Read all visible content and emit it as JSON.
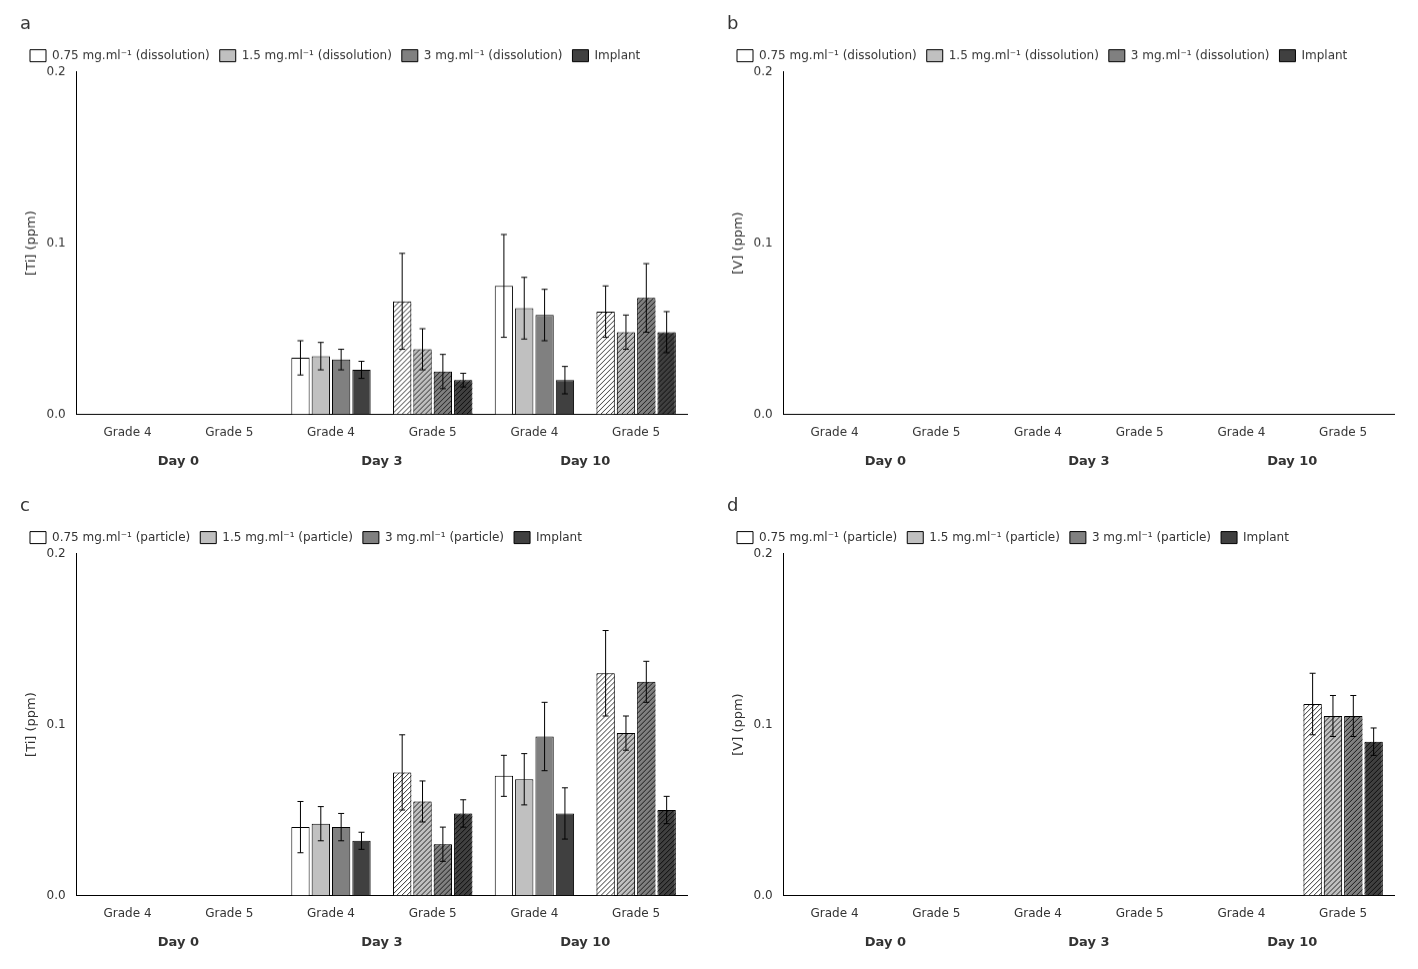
{
  "chart_data": [
    {
      "type": "bar",
      "title": "a",
      "ylabel": "[Ti] (ppm)",
      "categories": [
        "Grade 4",
        "Grade 5",
        "Grade 4",
        "Grade 5",
        "Grade 4",
        "Grade 5"
      ],
      "category_groups": [
        "Day 0",
        "Day 3",
        "Day 10"
      ],
      "series": [
        {
          "name": "0.75 mg.ml⁻¹ (dissolution)",
          "color": "#ffffff",
          "values": [
            0.0,
            0.0,
            0.033,
            0.066,
            0.075,
            0.06
          ],
          "errors": [
            0.0,
            0.0,
            0.01,
            0.028,
            0.03,
            0.015
          ]
        },
        {
          "name": "1.5 mg.ml⁻¹ (dissolution)",
          "color": "#c0c0c0",
          "values": [
            0.0,
            0.0,
            0.034,
            0.038,
            0.062,
            0.048
          ],
          "errors": [
            0.0,
            0.0,
            0.008,
            0.012,
            0.018,
            0.01
          ]
        },
        {
          "name": "3 mg.ml⁻¹ (dissolution)",
          "color": "#808080",
          "values": [
            0.0,
            0.0,
            0.032,
            0.025,
            0.058,
            0.068
          ],
          "errors": [
            0.0,
            0.0,
            0.006,
            0.01,
            0.015,
            0.02
          ]
        },
        {
          "name": "Implant",
          "color": "#404040",
          "values": [
            0.0,
            0.0,
            0.026,
            0.02,
            0.02,
            0.048
          ],
          "errors": [
            0.0,
            0.0,
            0.005,
            0.004,
            0.008,
            0.012
          ]
        }
      ],
      "ylim": [
        0.0,
        0.2
      ],
      "yticks": [
        {
          "value": 0.0,
          "label": "0.0"
        },
        0.1,
        0.2
      ],
      "grid": false,
      "legend": "upper left"
    },
    {
      "type": "bar",
      "title": "b",
      "ylabel": "[V] (ppm)",
      "categories": [
        "Grade 4",
        "Grade 5",
        "Grade 4",
        "Grade 5",
        "Grade 4",
        "Grade 5"
      ],
      "category_groups": [
        "Day 0",
        "Day 3",
        "Day 10"
      ],
      "series": [
        {
          "name": "0.75 mg.ml⁻¹ (dissolution)",
          "color": "#ffffff",
          "values": [
            0.0,
            0.0,
            0.0,
            0.0,
            0.0,
            0.0
          ],
          "errors": [
            0.0,
            0.0,
            0.0,
            0.0,
            0.0,
            0.0
          ]
        },
        {
          "name": "1.5 mg.ml⁻¹ (dissolution)",
          "color": "#c0c0c0",
          "values": [
            0.0,
            0.0,
            0.0,
            0.0,
            0.0,
            0.0
          ],
          "errors": [
            0.0,
            0.0,
            0.0,
            0.0,
            0.0,
            0.0
          ]
        },
        {
          "name": "3 mg.ml⁻¹ (dissolution)",
          "color": "#808080",
          "values": [
            0.0,
            0.0,
            0.0,
            0.0,
            0.0,
            0.0
          ],
          "errors": [
            0.0,
            0.0,
            0.0,
            0.0,
            0.0,
            0.0
          ]
        },
        {
          "name": "Implant",
          "color": "#404040",
          "values": [
            0.0,
            0.0,
            0.0,
            0.0,
            0.0,
            0.0
          ],
          "errors": [
            0.0,
            0.0,
            0.0,
            0.0,
            0.0,
            0.0
          ]
        }
      ],
      "ylim": [
        0.0,
        0.2
      ],
      "yticks": [
        {
          "value": 0.0,
          "label": "0.0"
        },
        0.1,
        0.2
      ],
      "grid": false,
      "legend": "upper left"
    },
    {
      "type": "bar",
      "title": "c",
      "ylabel": "[Ti] (ppm)",
      "categories": [
        "Grade 4",
        "Grade 5",
        "Grade 4",
        "Grade 5",
        "Grade 4",
        "Grade 5"
      ],
      "category_groups": [
        "Day 0",
        "Day 3",
        "Day 10"
      ],
      "series": [
        {
          "name": "0.75 mg.ml⁻¹ (particle)",
          "color": "#ffffff",
          "values": [
            0.0,
            0.0,
            0.04,
            0.072,
            0.07,
            0.13
          ],
          "errors": [
            0.0,
            0.0,
            0.015,
            0.022,
            0.012,
            0.025
          ]
        },
        {
          "name": "1.5 mg.ml⁻¹ (particle)",
          "color": "#c0c0c0",
          "values": [
            0.0,
            0.0,
            0.042,
            0.055,
            0.068,
            0.095
          ],
          "errors": [
            0.0,
            0.0,
            0.01,
            0.012,
            0.015,
            0.01
          ]
        },
        {
          "name": "3 mg.ml⁻¹ (particle)",
          "color": "#808080",
          "values": [
            0.0,
            0.0,
            0.04,
            0.03,
            0.093,
            0.125
          ],
          "errors": [
            0.0,
            0.0,
            0.008,
            0.01,
            0.02,
            0.012
          ]
        },
        {
          "name": "Implant",
          "color": "#404040",
          "values": [
            0.0,
            0.0,
            0.032,
            0.048,
            0.048,
            0.05
          ],
          "errors": [
            0.0,
            0.0,
            0.005,
            0.008,
            0.015,
            0.008
          ]
        }
      ],
      "ylim": [
        0.0,
        0.2
      ],
      "yticks": [
        {
          "value": 0.0,
          "label": "0.0"
        },
        0.1,
        0.2
      ],
      "grid": false,
      "legend": "upper left"
    },
    {
      "type": "bar",
      "title": "d",
      "ylabel": "[V] (ppm)",
      "categories": [
        "Grade 4",
        "Grade 5",
        "Grade 4",
        "Grade 5",
        "Grade 4",
        "Grade 5"
      ],
      "category_groups": [
        "Day 0",
        "Day 3",
        "Day 10"
      ],
      "series": [
        {
          "name": "0.75 mg.ml⁻¹ (particle)",
          "color": "#ffffff",
          "values": [
            0.0,
            0.0,
            0.0,
            0.0,
            0.0,
            0.112
          ],
          "errors": [
            0.0,
            0.0,
            0.0,
            0.0,
            0.0,
            0.018
          ]
        },
        {
          "name": "1.5 mg.ml⁻¹ (particle)",
          "color": "#c0c0c0",
          "values": [
            0.0,
            0.0,
            0.0,
            0.0,
            0.0,
            0.105
          ],
          "errors": [
            0.0,
            0.0,
            0.0,
            0.0,
            0.0,
            0.012
          ]
        },
        {
          "name": "3 mg.ml⁻¹ (particle)",
          "color": "#808080",
          "values": [
            0.0,
            0.0,
            0.0,
            0.0,
            0.0,
            0.105
          ],
          "errors": [
            0.0,
            0.0,
            0.0,
            0.0,
            0.0,
            0.012
          ]
        },
        {
          "name": "Implant",
          "color": "#404040",
          "values": [
            0.0,
            0.0,
            0.0,
            0.0,
            0.0,
            0.09
          ],
          "errors": [
            0.0,
            0.0,
            0.0,
            0.0,
            0.0,
            0.008
          ]
        }
      ],
      "ylim": [
        0.0,
        0.2
      ],
      "yticks": [
        {
          "value": 0.0,
          "label": "0.0"
        },
        0.1,
        0.2
      ],
      "grid": false,
      "legend": "upper left"
    }
  ]
}
